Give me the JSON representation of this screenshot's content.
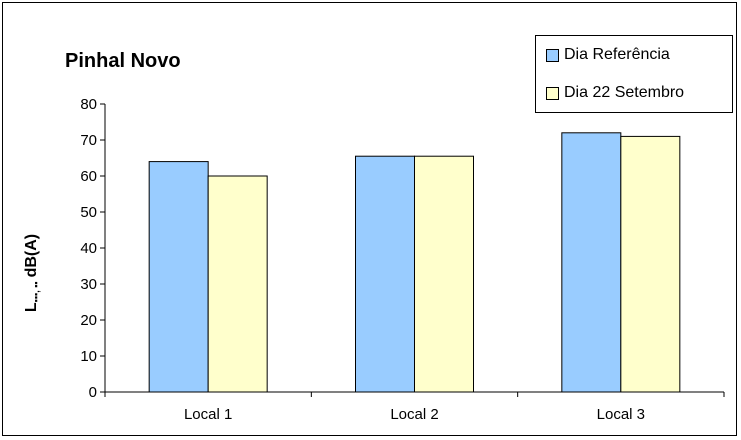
{
  "chart_data": {
    "type": "bar",
    "title": "Pinhal Novo",
    "ylabel_main": "L",
    "ylabel_unit": "dB(A)",
    "categories": [
      "Local 1",
      "Local 2",
      "Local 3"
    ],
    "series": [
      {
        "name": "Dia Referência",
        "color": "#99ccff",
        "values": [
          64,
          65.5,
          72
        ]
      },
      {
        "name": "Dia 22 Setembro",
        "color": "#ffffcc",
        "values": [
          60,
          65.5,
          71
        ]
      }
    ],
    "ylim": [
      0,
      80
    ],
    "yticks": [
      0,
      10,
      20,
      30,
      40,
      50,
      60,
      70,
      80
    ],
    "grid": false,
    "legend_position": "top-right"
  }
}
